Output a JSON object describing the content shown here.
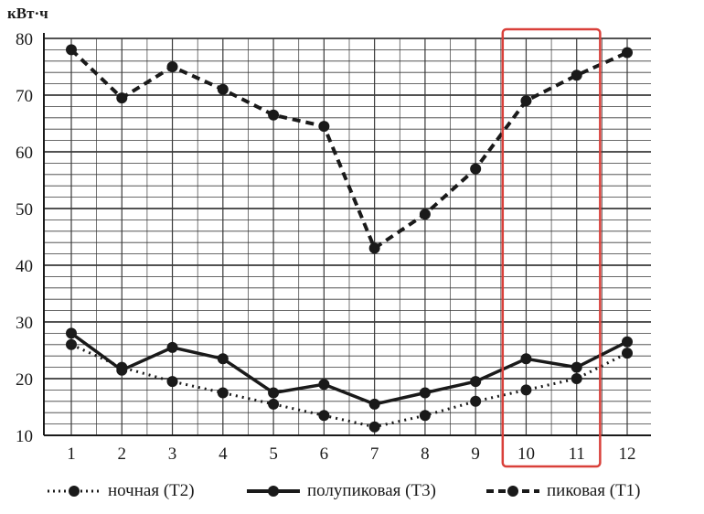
{
  "chart_data": {
    "type": "line",
    "unit_label": "кВт·ч",
    "categories": [
      "1",
      "2",
      "3",
      "4",
      "5",
      "6",
      "7",
      "8",
      "9",
      "10",
      "11",
      "12"
    ],
    "y_ticks": [
      "10",
      "20",
      "30",
      "40",
      "50",
      "60",
      "70",
      "80"
    ],
    "ylim": [
      10,
      80
    ],
    "grid": true,
    "legend_position": "bottom",
    "series": [
      {
        "name": "ночная (T2)",
        "style": "dotted",
        "values": [
          26,
          22,
          19.5,
          17.5,
          15.5,
          13.5,
          11.5,
          13.5,
          16,
          18,
          20,
          24.5
        ]
      },
      {
        "name": "полупиковая (T3)",
        "style": "solid",
        "values": [
          28,
          21.5,
          25.5,
          23.5,
          17.5,
          19,
          15.5,
          17.5,
          19.5,
          23.5,
          22,
          26.5
        ]
      },
      {
        "name": "пиковая (T1)",
        "style": "dashed",
        "values": [
          78,
          69.5,
          75,
          71,
          66.5,
          64.5,
          43,
          49,
          57,
          69,
          73.5,
          77.5
        ]
      }
    ],
    "highlight": {
      "categories": [
        "10",
        "11"
      ],
      "color": "#d9403a"
    }
  },
  "colors": {
    "ink": "#1a1a1a",
    "grid": "#3a3a3a",
    "highlight": "#d9403a"
  }
}
